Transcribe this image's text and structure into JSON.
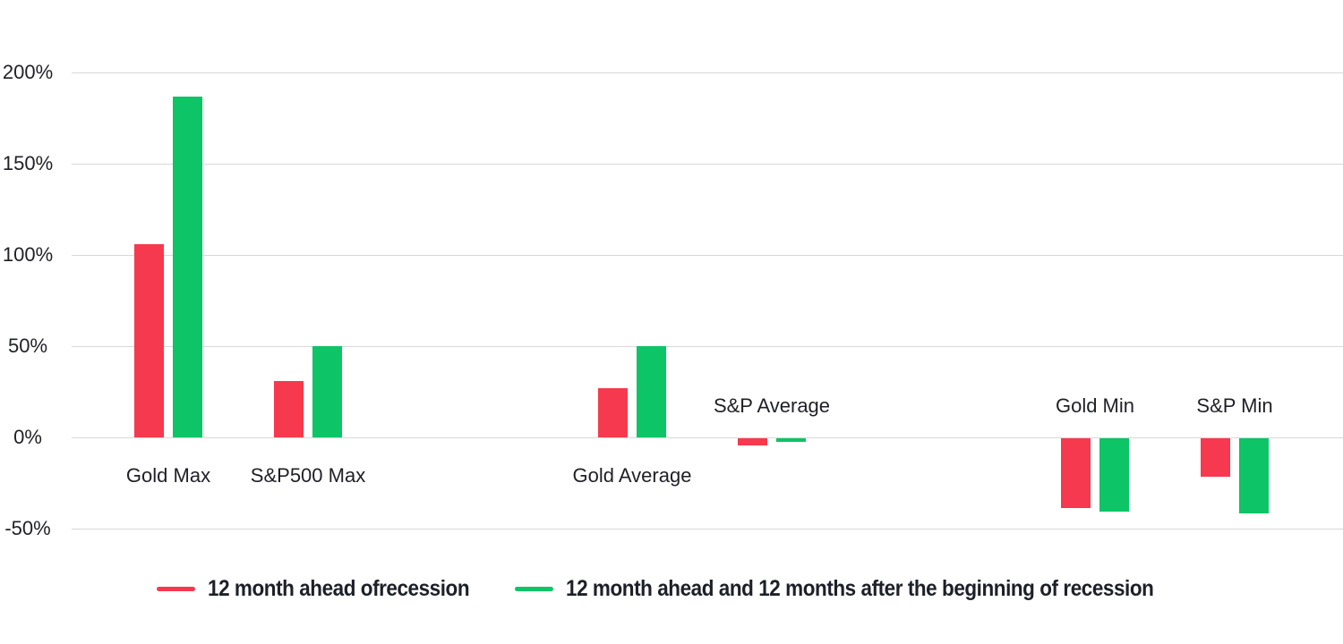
{
  "chart_data": {
    "type": "bar",
    "title": "",
    "xlabel": "",
    "ylabel": "",
    "categories": [
      "Gold Max",
      "S&P500 Max",
      "Gold Average",
      "S&P Average",
      "Gold Min",
      "S&P Min"
    ],
    "series": [
      {
        "name": "12 month ahead ofrecession",
        "color": "#f6394e",
        "values": [
          106,
          31,
          27,
          -4,
          -38,
          -21
        ]
      },
      {
        "name": "12 month ahead and 12 months after the beginning of recession",
        "color": "#0dc466",
        "values": [
          187,
          50,
          50,
          -2,
          -40,
          -41
        ]
      }
    ],
    "y_ticks": [
      200,
      150,
      100,
      50,
      0,
      -50
    ],
    "y_tick_suffix": "%",
    "ylim": [
      -50,
      200
    ],
    "grid": true,
    "gridline_color": "#d8d8d8",
    "legend_position": "bottom"
  }
}
